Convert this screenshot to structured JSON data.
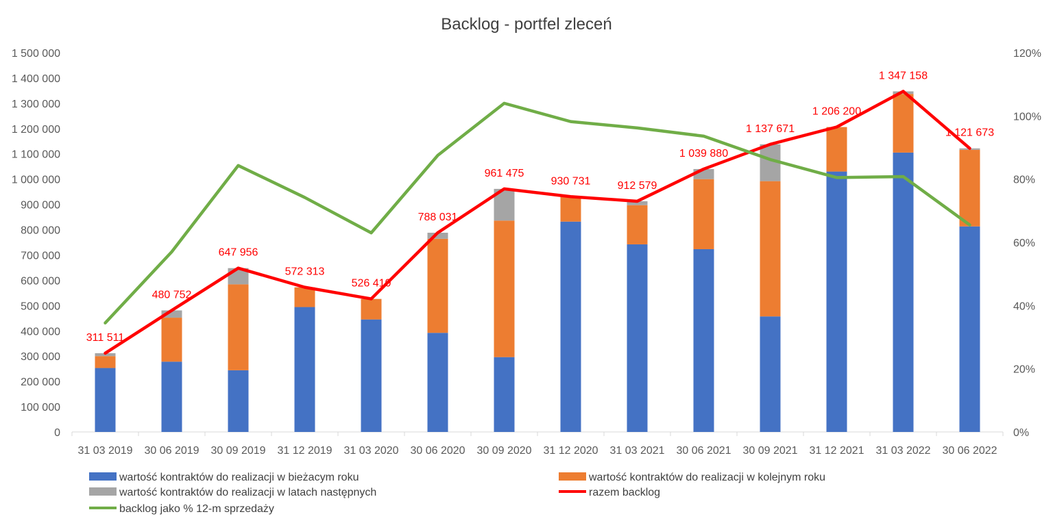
{
  "chart_data": {
    "type": "bar",
    "title": "Backlog - portfel zleceń",
    "categories": [
      "31 03 2019",
      "30 06 2019",
      "30 09 2019",
      "31 12 2019",
      "31 03 2020",
      "30 06 2020",
      "30 09 2020",
      "31 12 2020",
      "31 03 2021",
      "30 06 2021",
      "30 09 2021",
      "31 12 2021",
      "31 03 2022",
      "30 06 2022"
    ],
    "stacked": true,
    "ylim": [
      0,
      1500000
    ],
    "y_ticks": [
      "1 500 000",
      "1 400 000",
      "1 300 000",
      "1 200 000",
      "1 100 000",
      "1 000 000",
      "900 000",
      "800 000",
      "700 000",
      "600 000",
      "500 000",
      "400 000",
      "300 000",
      "200 000",
      "100 000",
      "0"
    ],
    "y2lim": [
      0,
      120
    ],
    "y2_ticks": [
      "120%",
      "100%",
      "80%",
      "60%",
      "40%",
      "20%",
      "0%"
    ],
    "series": [
      {
        "name": "wartość kontraktów do realizacji w bieżacym roku",
        "kind": "bar",
        "color": "#4472C4",
        "values": [
          253000,
          278000,
          244000,
          494000,
          445000,
          392000,
          296000,
          832000,
          742000,
          723000,
          457000,
          1030000,
          1105000,
          813000
        ]
      },
      {
        "name": "wartość kontraktów do realizacji w kolejnym roku",
        "kind": "bar",
        "color": "#ED7D31",
        "values": [
          47000,
          174000,
          340000,
          78000,
          81000,
          372000,
          540000,
          98000,
          155000,
          277000,
          535000,
          176000,
          232000,
          303000
        ]
      },
      {
        "name": "wartość kontraktów do realizacji w latach następnych",
        "kind": "bar",
        "color": "#A5A5A5",
        "values": [
          11511,
          28752,
          63956,
          313,
          410,
          24031,
          125475,
          731,
          15579,
          39880,
          145671,
          200,
          10158,
          5673
        ]
      },
      {
        "name": "razem backlog",
        "kind": "line",
        "color": "#FF0000",
        "values": [
          311511,
          480752,
          647956,
          572313,
          526410,
          788031,
          961475,
          930731,
          912579,
          1039880,
          1137671,
          1206200,
          1347158,
          1121673
        ]
      },
      {
        "name": "backlog jako % 12-m sprzedaży",
        "kind": "line",
        "axis": "right",
        "color": "#70AD47",
        "values": [
          34.5,
          57,
          84.3,
          74.2,
          63,
          87.5,
          104,
          98.2,
          96.2,
          93.6,
          86.2,
          80.5,
          80.8,
          65.5
        ]
      }
    ],
    "data_labels": [
      "311 511",
      "480 752",
      "647 956",
      "572 313",
      "526 410",
      "788 031",
      "961 475",
      "930 731",
      "912 579",
      "1 039 880",
      "1 137 671",
      "1 206 200",
      "1 347 158",
      "1 121 673"
    ],
    "legend_position": "bottom",
    "grid": false
  }
}
